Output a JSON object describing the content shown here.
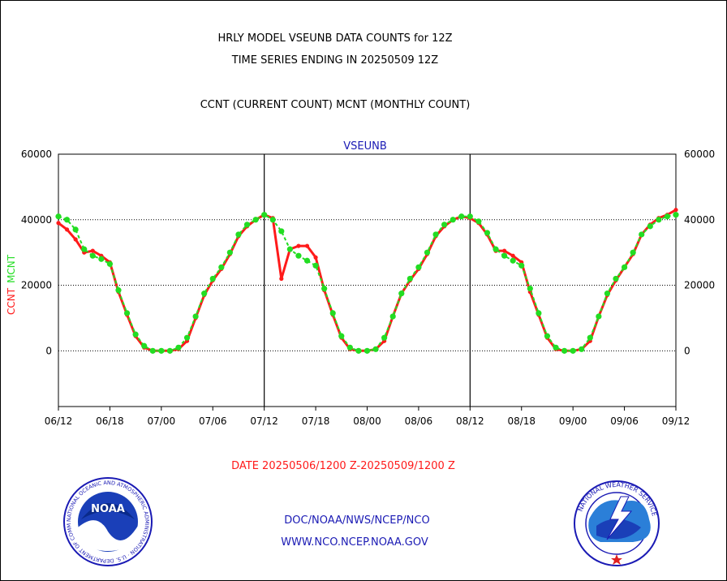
{
  "title_line1": "HRLY MODEL VSEUNB DATA COUNTS for 12Z",
  "title_line2": "TIME SERIES ENDING IN 20250509 12Z",
  "subtitle": "CCNT (CURRENT COUNT) MCNT (MONTHLY COUNT)",
  "footer_date": "DATE 20250506/1200 Z-20250509/1200 Z",
  "footer_org": "DOC/NOAA/NWS/NCEP/NCO",
  "footer_url": "WWW.NCO.NCEP.NOAA.GOV",
  "logos": {
    "noaa": {
      "name": "noaa-logo",
      "text": "NOAA",
      "ring_text": "NATIONAL OCEANIC AND ATMOSPHERIC ADMINISTRATION · U.S. DEPARTMENT OF COMMERCE"
    },
    "nws": {
      "name": "nws-logo",
      "ring_text": "NATIONAL WEATHER SERVICE"
    }
  },
  "colors": {
    "ccnt": "#ff1a1a",
    "mcnt": "#22dd22",
    "title_blue": "#1a1ab4"
  },
  "chart_data": {
    "type": "line",
    "title": "VSEUNB",
    "ylabel": "CCNT  MCNT",
    "ylim": [
      -17000,
      60000
    ],
    "yticks": [
      0,
      20000,
      40000,
      60000
    ],
    "ytick_labels": [
      "0",
      "20000",
      "40000",
      "60000"
    ],
    "xlim": [
      0,
      72
    ],
    "xticks": [
      0,
      6,
      12,
      18,
      24,
      30,
      36,
      42,
      48,
      54,
      60,
      66,
      72
    ],
    "xtick_labels": [
      "06/12",
      "06/18",
      "07/00",
      "07/06",
      "07/12",
      "07/18",
      "08/00",
      "08/06",
      "08/12",
      "08/18",
      "09/00",
      "09/06",
      "09/12"
    ],
    "day_separators": [
      24,
      48
    ],
    "grid": "horizontal dotted at 0, 20000, 40000",
    "series": [
      {
        "name": "CCNT",
        "color": "#ff1a1a",
        "x": [
          0,
          1,
          2,
          3,
          4,
          5,
          6,
          7,
          8,
          9,
          10,
          11,
          12,
          13,
          14,
          15,
          16,
          17,
          18,
          19,
          20,
          21,
          22,
          23,
          24,
          25,
          26,
          27,
          28,
          29,
          30,
          31,
          32,
          33,
          34,
          35,
          36,
          37,
          38,
          39,
          40,
          41,
          42,
          43,
          44,
          45,
          46,
          47,
          48,
          49,
          50,
          51,
          52,
          53,
          54,
          55,
          56,
          57,
          58,
          59,
          60,
          61,
          62,
          63,
          64,
          65,
          66,
          67,
          68,
          69,
          70,
          71,
          72
        ],
        "values": [
          39000,
          37000,
          34000,
          30000,
          30500,
          29000,
          27000,
          18000,
          11000,
          4500,
          1000,
          0,
          0,
          0,
          500,
          3000,
          10000,
          17000,
          21500,
          25000,
          29500,
          35000,
          38000,
          40000,
          41500,
          40500,
          22000,
          31000,
          32000,
          32000,
          28500,
          18500,
          11000,
          4000,
          500,
          0,
          0,
          500,
          3000,
          10500,
          17500,
          21500,
          25000,
          29500,
          35000,
          38000,
          40000,
          41000,
          40500,
          39000,
          35500,
          30500,
          30500,
          29000,
          27000,
          18000,
          11000,
          4000,
          500,
          0,
          0,
          500,
          3000,
          10500,
          17000,
          21500,
          25500,
          29500,
          35500,
          38500,
          40500,
          41500,
          43000
        ]
      },
      {
        "name": "MCNT",
        "color": "#22dd22",
        "x": [
          0,
          1,
          2,
          3,
          4,
          5,
          6,
          7,
          8,
          9,
          10,
          11,
          12,
          13,
          14,
          15,
          16,
          17,
          18,
          19,
          20,
          21,
          22,
          23,
          24,
          25,
          26,
          27,
          28,
          29,
          30,
          31,
          32,
          33,
          34,
          35,
          36,
          37,
          38,
          39,
          40,
          41,
          42,
          43,
          44,
          45,
          46,
          47,
          48,
          49,
          50,
          51,
          52,
          53,
          54,
          55,
          56,
          57,
          58,
          59,
          60,
          61,
          62,
          63,
          64,
          65,
          66,
          67,
          68,
          69,
          70,
          71,
          72
        ],
        "values": [
          41000,
          40000,
          37000,
          31000,
          29000,
          28000,
          26500,
          18500,
          11500,
          5000,
          1500,
          0,
          0,
          0,
          1000,
          4000,
          10500,
          17500,
          22000,
          25500,
          30000,
          35500,
          38500,
          40000,
          41500,
          40000,
          36500,
          31000,
          29000,
          27500,
          26000,
          19000,
          11500,
          4500,
          1000,
          0,
          0,
          500,
          4000,
          10500,
          17500,
          22000,
          25500,
          30000,
          35500,
          38500,
          40000,
          41000,
          41000,
          39500,
          36000,
          31000,
          29000,
          27500,
          26000,
          19000,
          11500,
          4500,
          1000,
          0,
          0,
          500,
          4000,
          10500,
          17500,
          22000,
          25500,
          30000,
          35500,
          38000,
          40000,
          41000,
          41500
        ]
      }
    ]
  }
}
